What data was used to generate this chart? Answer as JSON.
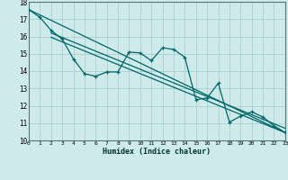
{
  "xlabel": "Humidex (Indice chaleur)",
  "bg_color": "#ceeaea",
  "grid_color": "#aacece",
  "line_color": "#006666",
  "xlim": [
    0,
    23
  ],
  "ylim": [
    10,
    18
  ],
  "xticks": [
    0,
    1,
    2,
    3,
    4,
    5,
    6,
    7,
    8,
    9,
    10,
    11,
    12,
    13,
    14,
    15,
    16,
    17,
    18,
    19,
    20,
    21,
    22,
    23
  ],
  "yticks": [
    10,
    11,
    12,
    13,
    14,
    15,
    16,
    17,
    18
  ],
  "data_line": [
    [
      0,
      17.55
    ],
    [
      1,
      17.1
    ],
    [
      2,
      16.35
    ],
    [
      3,
      15.85
    ],
    [
      4,
      14.7
    ],
    [
      5,
      13.85
    ],
    [
      6,
      13.7
    ],
    [
      7,
      13.95
    ],
    [
      8,
      13.95
    ],
    [
      9,
      15.1
    ],
    [
      10,
      15.05
    ],
    [
      11,
      14.6
    ],
    [
      12,
      15.35
    ],
    [
      13,
      15.25
    ],
    [
      14,
      14.8
    ],
    [
      15,
      12.35
    ],
    [
      16,
      12.45
    ],
    [
      17,
      13.3
    ],
    [
      18,
      11.05
    ],
    [
      19,
      11.4
    ],
    [
      20,
      11.65
    ],
    [
      21,
      11.35
    ],
    [
      22,
      10.85
    ],
    [
      23,
      10.45
    ]
  ],
  "trend_lines": [
    [
      [
        0,
        17.55
      ],
      [
        23,
        10.45
      ]
    ],
    [
      [
        2,
        16.2
      ],
      [
        23,
        10.7
      ]
    ],
    [
      [
        2,
        15.95
      ],
      [
        23,
        10.45
      ]
    ]
  ]
}
